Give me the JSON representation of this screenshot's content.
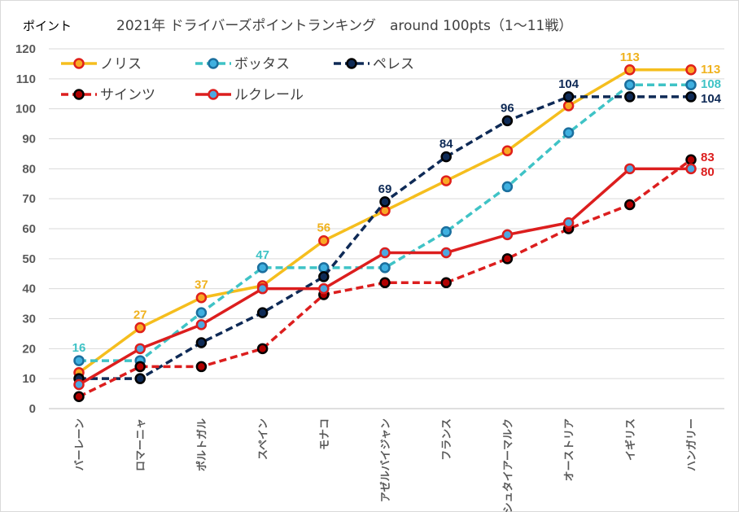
{
  "chart_data": {
    "type": "line",
    "title": "2021年  ドライバーズポイントランキング　around 100pts（1～11戦）",
    "ylabel": "ポイント",
    "xlabel": "",
    "ylim": [
      0,
      120
    ],
    "yticks": [
      0,
      10,
      20,
      30,
      40,
      50,
      60,
      70,
      80,
      90,
      100,
      110,
      120
    ],
    "grid": true,
    "legend": "top-left",
    "categories": [
      "バーレーン",
      "ロマーニャ",
      "ポルトガル",
      "スペイン",
      "モナコ",
      "アゼルバイジャン",
      "フランス",
      "シュタイアーマルク",
      "オーストリア",
      "イギリス",
      "ハンガリー"
    ],
    "series": [
      {
        "name": "ノリス",
        "values": [
          12,
          27,
          37,
          41,
          56,
          66,
          76,
          86,
          101,
          113,
          113
        ],
        "line": "#F5BE1E",
        "dash": false,
        "marker_fill": "#F9A825",
        "marker_stroke": "#E0201A",
        "label_color": "#F0B21E",
        "labels": [
          [
            1,
            "27"
          ],
          [
            2,
            "37"
          ],
          [
            4,
            "56"
          ],
          [
            9,
            "113"
          ],
          [
            10,
            "113"
          ]
        ]
      },
      {
        "name": "ボッタス",
        "values": [
          16,
          16,
          32,
          47,
          47,
          47,
          59,
          74,
          92,
          108,
          108
        ],
        "line": "#3FC3C6",
        "dash": true,
        "marker_fill": "#3FB0E0",
        "marker_stroke": "#1B6F9E",
        "label_color": "#3FC3C6",
        "labels": [
          [
            0,
            "16"
          ],
          [
            3,
            "47"
          ],
          [
            10,
            "108"
          ]
        ]
      },
      {
        "name": "ペレス",
        "values": [
          10,
          10,
          22,
          32,
          44,
          69,
          84,
          96,
          104,
          104,
          104
        ],
        "line": "#0E2A56",
        "dash": true,
        "marker_fill": "#0E2A56",
        "marker_stroke": "#000000",
        "label_color": "#0E2A56",
        "labels": [
          [
            5,
            "69"
          ],
          [
            6,
            "84"
          ],
          [
            7,
            "96"
          ],
          [
            8,
            "104"
          ],
          [
            10,
            "104"
          ]
        ]
      },
      {
        "name": "サインツ",
        "values": [
          4,
          14,
          14,
          20,
          38,
          42,
          42,
          50,
          60,
          68,
          83
        ],
        "line": "#DC1E1E",
        "dash": true,
        "marker_fill": "#B00000",
        "marker_stroke": "#000000",
        "label_color": "#DC1E1E",
        "labels": [
          [
            10,
            "83"
          ]
        ]
      },
      {
        "name": "ルクレール",
        "values": [
          8,
          20,
          28,
          40,
          40,
          52,
          52,
          58,
          62,
          80,
          80
        ],
        "line": "#DC1E1E",
        "dash": false,
        "marker_fill": "#4DA8E0",
        "marker_stroke": "#DC1E1E",
        "label_color": "#DC1E1E",
        "labels": [
          [
            10,
            "80"
          ]
        ]
      }
    ]
  }
}
